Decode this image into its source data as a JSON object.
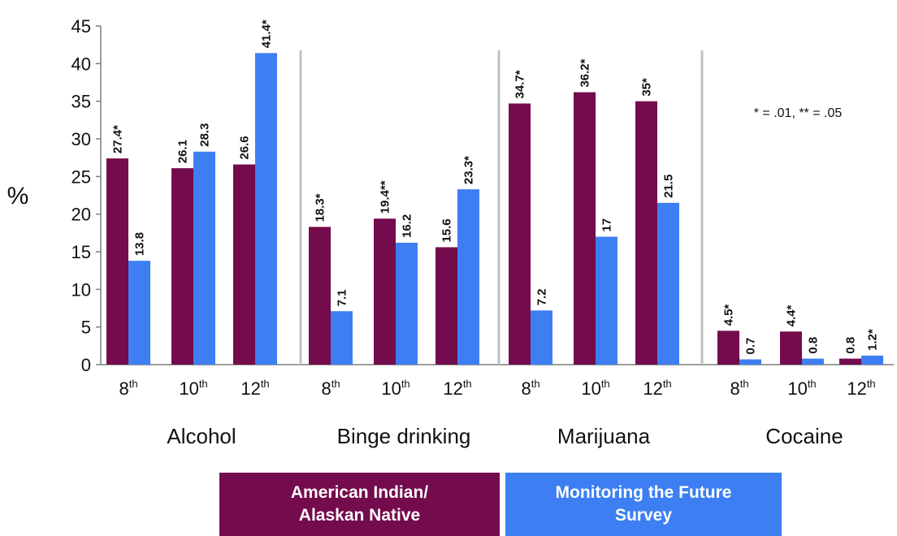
{
  "chart_data": {
    "type": "bar",
    "ylabel": "%",
    "ylim": [
      0,
      45
    ],
    "yticks": [
      "0",
      "5",
      "10",
      "15",
      "20",
      "25",
      "30",
      "35",
      "40",
      "45"
    ],
    "note": "* = .01, ** = .05",
    "colors": {
      "aian": "#730b4c",
      "mtf": "#3d7ff2",
      "separator": "#b8c3c8"
    },
    "groups": [
      {
        "name": "Alcohol",
        "grades": [
          {
            "grade": "8",
            "sup": "th",
            "aian": 27.4,
            "aian_label": "27.4*",
            "mtf": 13.8,
            "mtf_label": "13.8"
          },
          {
            "grade": "10",
            "sup": "th",
            "aian": 26.1,
            "aian_label": "26.1",
            "mtf": 28.3,
            "mtf_label": "28.3"
          },
          {
            "grade": "12",
            "sup": "th",
            "aian": 26.6,
            "aian_label": "26.6",
            "mtf": 41.4,
            "mtf_label": "41.4*"
          }
        ]
      },
      {
        "name": "Binge drinking",
        "grades": [
          {
            "grade": "8",
            "sup": "th",
            "aian": 18.3,
            "aian_label": "18.3*",
            "mtf": 7.1,
            "mtf_label": "7.1"
          },
          {
            "grade": "10",
            "sup": "th",
            "aian": 19.4,
            "aian_label": "19.4**",
            "mtf": 16.2,
            "mtf_label": "16.2"
          },
          {
            "grade": "12",
            "sup": "th",
            "aian": 15.6,
            "aian_label": "15.6",
            "mtf": 23.3,
            "mtf_label": "23.3*"
          }
        ]
      },
      {
        "name": "Marijuana",
        "grades": [
          {
            "grade": "8",
            "sup": "th",
            "aian": 34.7,
            "aian_label": "34.7*",
            "mtf": 7.2,
            "mtf_label": "7.2"
          },
          {
            "grade": "10",
            "sup": "th",
            "aian": 36.2,
            "aian_label": "36.2*",
            "mtf": 17,
            "mtf_label": "17"
          },
          {
            "grade": "12",
            "sup": "th",
            "aian": 35,
            "aian_label": "35*",
            "mtf": 21.5,
            "mtf_label": "21.5"
          }
        ]
      },
      {
        "name": "Cocaine",
        "grades": [
          {
            "grade": "8",
            "sup": "th",
            "aian": 4.5,
            "aian_label": "4.5*",
            "mtf": 0.7,
            "mtf_label": "0.7"
          },
          {
            "grade": "10",
            "sup": "th",
            "aian": 4.4,
            "aian_label": "4.4*",
            "mtf": 0.8,
            "mtf_label": "0.8"
          },
          {
            "grade": "12",
            "sup": "th",
            "aian": 0.8,
            "aian_label": "0.8",
            "mtf": 1.2,
            "mtf_label": "1.2*"
          }
        ]
      }
    ],
    "legend": [
      {
        "key": "aian",
        "label": "American Indian/\nAlaskan Native",
        "color": "#730b4c"
      },
      {
        "key": "mtf",
        "label": "Monitoring the Future\nSurvey",
        "color": "#3d7ff2"
      }
    ]
  }
}
